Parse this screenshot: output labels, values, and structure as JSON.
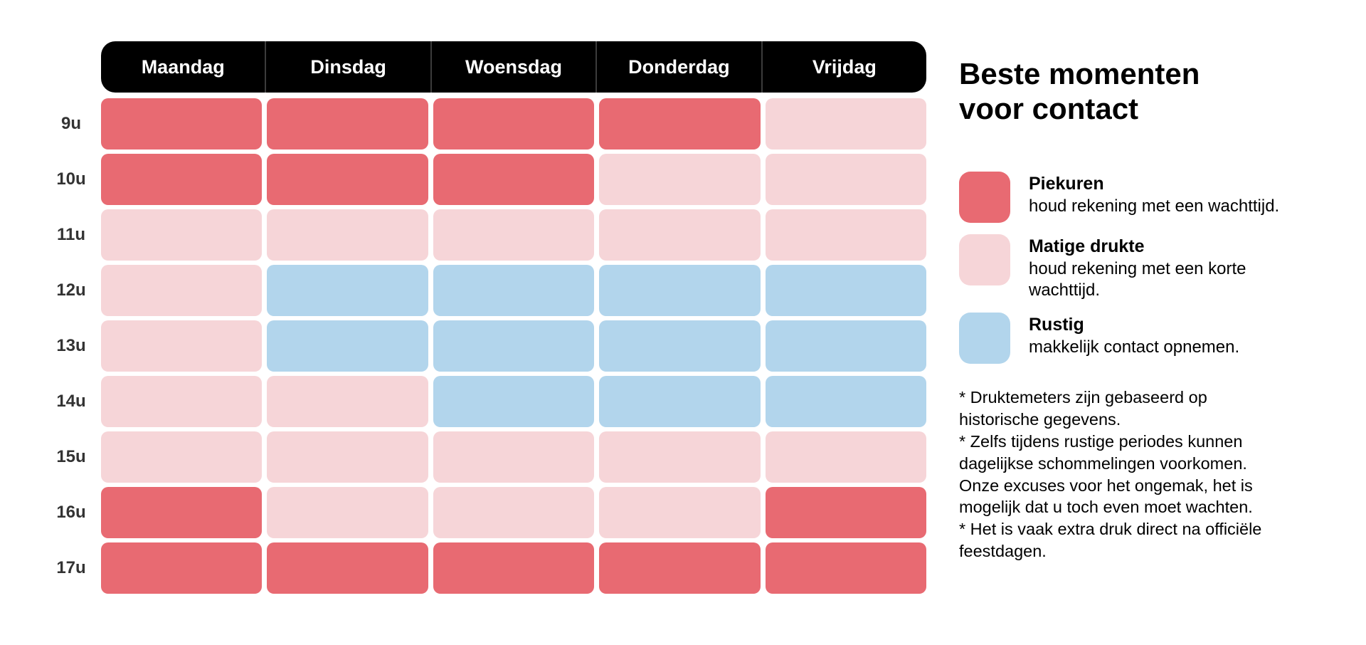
{
  "title": "Beste momenten voor contact",
  "days": [
    "Maandag",
    "Dinsdag",
    "Woensdag",
    "Donderdag",
    "Vrijdag"
  ],
  "hours": [
    "9u",
    "10u",
    "11u",
    "12u",
    "13u",
    "14u",
    "15u",
    "16u",
    "17u"
  ],
  "colors": {
    "piek": "#E86A72",
    "matig": "#F6D5D8",
    "rustig": "#B2D5EC",
    "header_bg": "#000000",
    "header_text": "#FFFFFF",
    "hour_label": "#333333"
  },
  "grid": [
    [
      "piek",
      "piek",
      "piek",
      "piek",
      "matig"
    ],
    [
      "piek",
      "piek",
      "piek",
      "matig",
      "matig"
    ],
    [
      "matig",
      "matig",
      "matig",
      "matig",
      "matig"
    ],
    [
      "matig",
      "rustig",
      "rustig",
      "rustig",
      "rustig"
    ],
    [
      "matig",
      "rustig",
      "rustig",
      "rustig",
      "rustig"
    ],
    [
      "matig",
      "matig",
      "rustig",
      "rustig",
      "rustig"
    ],
    [
      "matig",
      "matig",
      "matig",
      "matig",
      "matig"
    ],
    [
      "piek",
      "matig",
      "matig",
      "matig",
      "piek"
    ],
    [
      "piek",
      "piek",
      "piek",
      "piek",
      "piek"
    ]
  ],
  "legend": [
    {
      "key": "piek",
      "title": "Piekuren",
      "desc": "houd rekening met een wachttijd."
    },
    {
      "key": "matig",
      "title": "Matige drukte",
      "desc": "houd rekening met een korte wachttijd."
    },
    {
      "key": "rustig",
      "title": "Rustig",
      "desc": "makkelijk contact opnemen."
    }
  ],
  "footnotes": [
    "* Druktemeters zijn gebaseerd op historische gegevens.",
    "* Zelfs tijdens rustige periodes kunnen dagelijkse schommelingen voorkomen. Onze excuses voor het ongemak, het is mogelijk dat u toch even moet wachten.",
    "* Het is vaak extra druk direct na officiële feestdagen."
  ],
  "chart_data": {
    "type": "heatmap",
    "title": "Beste momenten voor contact",
    "x": [
      "Maandag",
      "Dinsdag",
      "Woensdag",
      "Donderdag",
      "Vrijdag"
    ],
    "y": [
      "9u",
      "10u",
      "11u",
      "12u",
      "13u",
      "14u",
      "15u",
      "16u",
      "17u"
    ],
    "values": [
      [
        "piek",
        "piek",
        "piek",
        "piek",
        "matig"
      ],
      [
        "piek",
        "piek",
        "piek",
        "matig",
        "matig"
      ],
      [
        "matig",
        "matig",
        "matig",
        "matig",
        "matig"
      ],
      [
        "matig",
        "rustig",
        "rustig",
        "rustig",
        "rustig"
      ],
      [
        "matig",
        "rustig",
        "rustig",
        "rustig",
        "rustig"
      ],
      [
        "matig",
        "matig",
        "rustig",
        "rustig",
        "rustig"
      ],
      [
        "matig",
        "matig",
        "matig",
        "matig",
        "matig"
      ],
      [
        "piek",
        "matig",
        "matig",
        "matig",
        "piek"
      ],
      [
        "piek",
        "piek",
        "piek",
        "piek",
        "piek"
      ]
    ],
    "levels": {
      "piek": "Piekuren — houd rekening met een wachttijd.",
      "matig": "Matige drukte — houd rekening met een korte wachttijd.",
      "rustig": "Rustig — makkelijk contact opnemen."
    },
    "level_colors": {
      "piek": "#E86A72",
      "matig": "#F6D5D8",
      "rustig": "#B2D5EC"
    },
    "legend_position": "right",
    "grid": false
  }
}
